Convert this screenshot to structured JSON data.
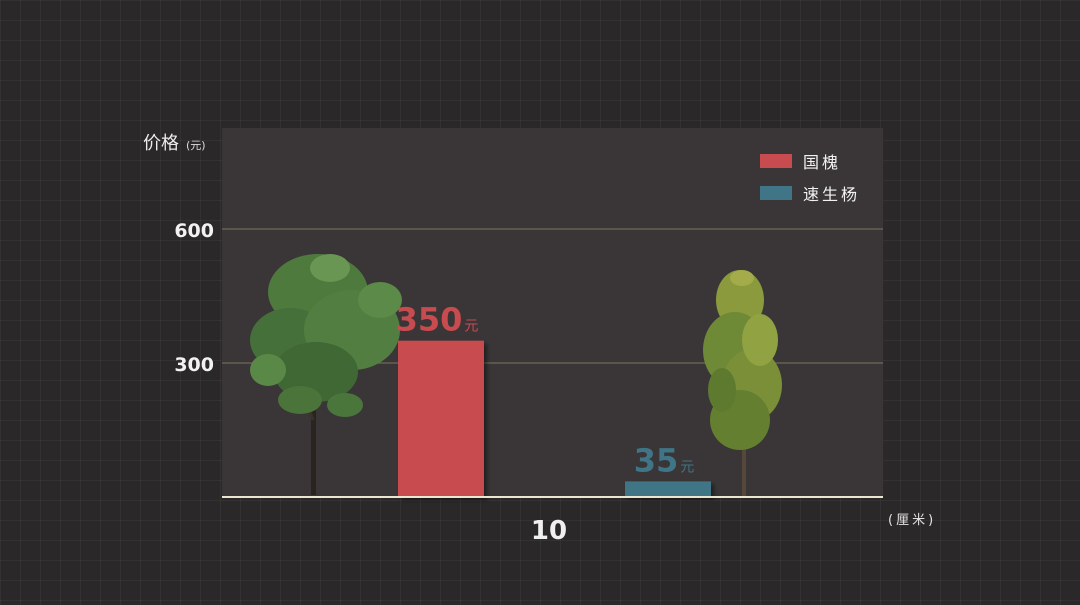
{
  "chart_data": {
    "type": "bar",
    "ylabel": "价格",
    "ylabel_unit": "(元)",
    "xlabel_unit": "(厘米)",
    "categories": [
      "10"
    ],
    "yticks": [
      300,
      600
    ],
    "ylim": [
      0,
      600
    ],
    "grid": true,
    "legend_position": "top-right",
    "series": [
      {
        "name": "国槐",
        "values": [
          350
        ],
        "label": "350",
        "unit": "元",
        "color": "#c84b50"
      },
      {
        "name": "速生杨",
        "values": [
          35
        ],
        "label": "35",
        "unit": "元",
        "color": "#3f7586"
      }
    ]
  },
  "icons": [
    "tree-illustration-guohuai",
    "tree-illustration-poplar"
  ]
}
